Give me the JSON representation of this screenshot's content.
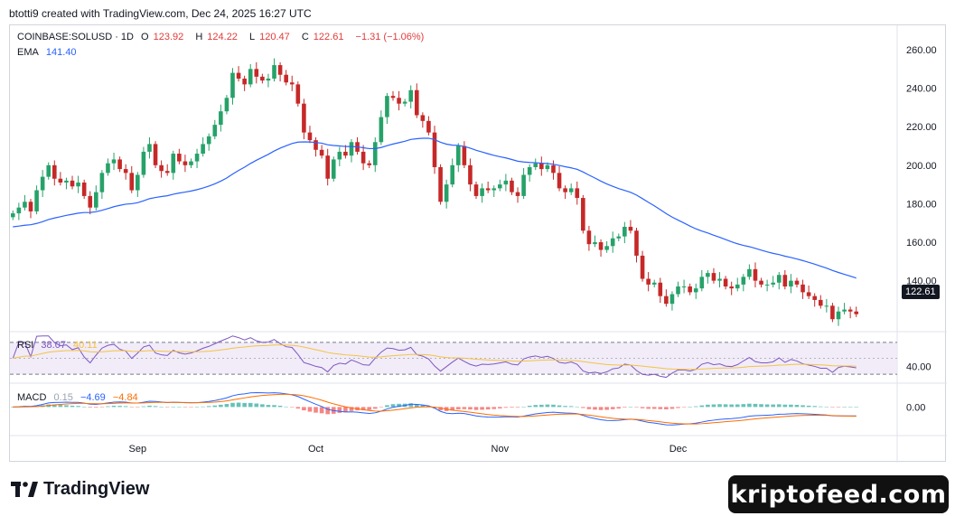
{
  "header": {
    "text": "btotti9 created with TradingView.com, Dec 24, 2025 16:27 UTC"
  },
  "legend": {
    "symbol": "COINBASE:SOLUSD · 1D",
    "open_label": "O",
    "open": "123.92",
    "high_label": "H",
    "high": "124.22",
    "low_label": "L",
    "low": "120.47",
    "close_label": "C",
    "close": "122.61",
    "change": "−1.31 (−1.06%)",
    "ema_label": "EMA",
    "ema_value": "141.40",
    "rsi_label": "RSI",
    "rsi_value": "38.07",
    "rsi_ma": "40.11",
    "macd_label": "MACD",
    "macd_hist": "0.15",
    "macd_line": "−4.69",
    "macd_signal": "−4.84"
  },
  "price_axis_tag": "122.61",
  "footer": {
    "logo_text": "TradingView",
    "watermark": "kriptofeed.com"
  },
  "colors": {
    "up": "#26a269",
    "down": "#c62828",
    "ema": "#2962ff",
    "rsi": "#7e57c2",
    "rsi_ma": "#f5c242",
    "macd": "#2962ff",
    "signal": "#ff6d00",
    "hist_pos": "#26a69a",
    "hist_neg": "#ef5350"
  },
  "chart_data": {
    "type": "candlestick",
    "price_axis": {
      "ticks": [
        140,
        160,
        180,
        200,
        220,
        240,
        260
      ],
      "ylim": [
        114,
        268
      ]
    },
    "rsi_axis": {
      "ticks": [
        40
      ],
      "ylim": [
        20,
        80
      ],
      "band": [
        30,
        70
      ]
    },
    "macd_axis": {
      "ticks": [
        "0.00"
      ],
      "ylim": [
        -14,
        12
      ]
    },
    "x_ticks": [
      {
        "label": "Sep",
        "index": 21
      },
      {
        "label": "Oct",
        "index": 51
      },
      {
        "label": "Nov",
        "index": 82
      },
      {
        "label": "Dec",
        "index": 112
      }
    ],
    "close": [
      175,
      178,
      181,
      176,
      187,
      194,
      200,
      193,
      191,
      192,
      189,
      191,
      184,
      178,
      186,
      196,
      201,
      203,
      198,
      196,
      187,
      195,
      207,
      211,
      200,
      197,
      196,
      206,
      202,
      200,
      202,
      206,
      211,
      215,
      221,
      228,
      235,
      248,
      245,
      242,
      250,
      246,
      244,
      245,
      252,
      247,
      243,
      242,
      232,
      217,
      213,
      208,
      205,
      193,
      203,
      207,
      205,
      212,
      207,
      201,
      200,
      212,
      225,
      236,
      235,
      232,
      233,
      239,
      226,
      223,
      217,
      199,
      181,
      190,
      200,
      210,
      200,
      190,
      184,
      188,
      187,
      188,
      190,
      192,
      186,
      184,
      195,
      199,
      201,
      198,
      200,
      196,
      188,
      186,
      188,
      183,
      166,
      159,
      160,
      156,
      158,
      162,
      163,
      168,
      166,
      153,
      141,
      138,
      139,
      132,
      128,
      133,
      137,
      137,
      134,
      136,
      142,
      144,
      140,
      141,
      137,
      136,
      138,
      142,
      146,
      140,
      138,
      138,
      139,
      143,
      137,
      140,
      138,
      134,
      132,
      130,
      127,
      127,
      120,
      124,
      125,
      124,
      122.61
    ],
    "ema_last": 141.4,
    "rsi_last": 38.07,
    "rsi_ma_last": 40.11,
    "macd_last": -4.69,
    "signal_last": -4.84,
    "hist_last": 0.15
  }
}
